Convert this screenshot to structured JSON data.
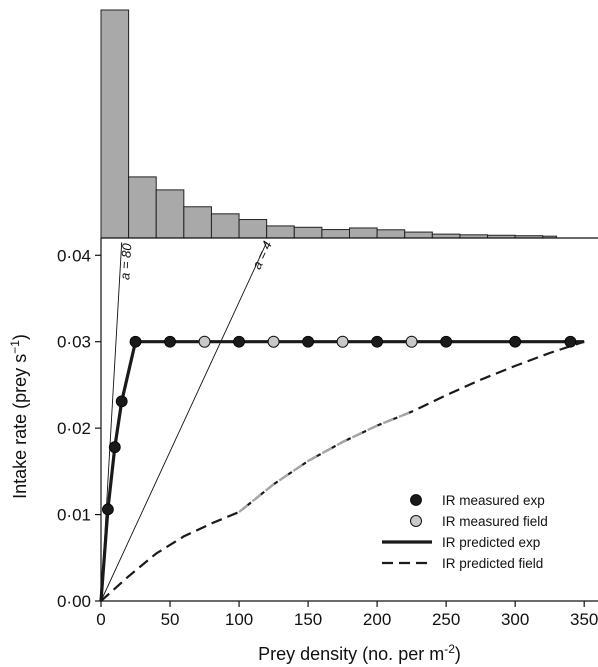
{
  "colors": {
    "histogram_fill": "#a9a9a9",
    "histogram_stroke": "#222222",
    "measured_exp_fill": "#1a1a1a",
    "measured_field_fill": "#c8c8c8",
    "line_exp": "#1a1a1a",
    "line_field_dark": "#1a1a1a",
    "line_field_light": "#a6a6a6",
    "axis": "#111111"
  },
  "chart_data": [
    {
      "type": "bar",
      "panel": "histogram",
      "bin_edges": [
        0,
        20,
        40,
        60,
        80,
        100,
        120,
        140,
        160,
        180,
        200,
        220,
        240,
        260,
        280,
        300,
        320,
        330
      ],
      "values": [
        1.0,
        0.268,
        0.211,
        0.137,
        0.106,
        0.081,
        0.053,
        0.047,
        0.037,
        0.044,
        0.036,
        0.026,
        0.017,
        0.014,
        0.012,
        0.01,
        0.008
      ]
    },
    {
      "type": "line",
      "panel": "intake",
      "xlabel": "Prey density (no. per m",
      "xlabel_sup": "-2",
      "xlabel_end": ")",
      "ylabel": "Intake rate (prey s",
      "ylabel_sup": "−1",
      "ylabel_end": ")",
      "xlim": [
        0,
        360
      ],
      "ylim": [
        0,
        0.042
      ],
      "xticks": [
        0,
        50,
        100,
        150,
        200,
        250,
        300,
        350
      ],
      "xtick_labels": [
        "0",
        "50",
        "100",
        "150",
        "200",
        "250",
        "300",
        "350"
      ],
      "yticks": [
        0,
        0.01,
        0.02,
        0.03,
        0.04
      ],
      "ytick_labels": [
        "0·00",
        "0·01",
        "0·02",
        "0·03",
        "0·04"
      ],
      "legend": {
        "position": "bottom-right",
        "entries": [
          {
            "label": "IR measured exp",
            "style": "marker-dark"
          },
          {
            "label": "IR measured field",
            "style": "marker-light"
          },
          {
            "label": "IR predicted exp",
            "style": "solid"
          },
          {
            "label": "IR predicted field",
            "style": "dashed"
          }
        ]
      },
      "annotations": [
        {
          "text": "a = 80",
          "slope_a": 80
        },
        {
          "text": "a = 4",
          "slope_a": 4
        }
      ],
      "series": [
        {
          "name": "IR measured exp",
          "kind": "points",
          "x": [
            5,
            10,
            15,
            25,
            50,
            100,
            150,
            200,
            250,
            300,
            340
          ],
          "y": [
            0.0106,
            0.0178,
            0.0231,
            0.03,
            0.03,
            0.03,
            0.03,
            0.03,
            0.03,
            0.03,
            0.03
          ]
        },
        {
          "name": "IR measured field",
          "kind": "points",
          "x": [
            75,
            125,
            175,
            225
          ],
          "y": [
            0.03,
            0.03,
            0.03,
            0.03
          ]
        },
        {
          "name": "IR predicted exp",
          "kind": "line",
          "x": [
            0,
            5,
            10,
            15,
            25,
            350
          ],
          "y": [
            0,
            0.0106,
            0.0178,
            0.0231,
            0.03,
            0.03
          ]
        },
        {
          "name": "IR predicted field",
          "kind": "line",
          "x": [
            0,
            20,
            40,
            60,
            80,
            100,
            125,
            150,
            175,
            200,
            225,
            250,
            275,
            300,
            325,
            350
          ],
          "y": [
            0,
            0.00286,
            0.0055,
            0.00748,
            0.00897,
            0.0103,
            0.0135,
            0.0162,
            0.0184,
            0.0203,
            0.0219,
            0.0238,
            0.0256,
            0.0272,
            0.0287,
            0.03
          ]
        }
      ]
    }
  ]
}
